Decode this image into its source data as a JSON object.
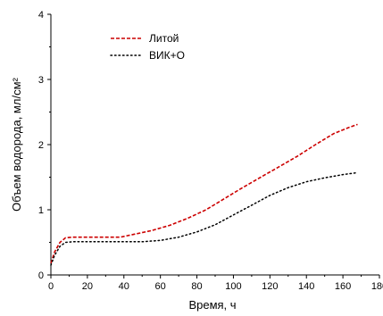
{
  "chart_data": {
    "type": "line",
    "xlabel": "Время, ч",
    "ylabel": "Объем водорода, мл/см²",
    "xlim": [
      0,
      180
    ],
    "ylim": [
      0,
      4
    ],
    "xticks": [
      "0",
      "20",
      "40",
      "60",
      "80",
      "100",
      "120",
      "140",
      "160",
      "180"
    ],
    "yticks": [
      "0",
      "1",
      "2",
      "3",
      "4"
    ],
    "grid": false,
    "legend_position": "top-left",
    "series": [
      {
        "name": "Литой",
        "color": "#cc0000",
        "line_style": "dashed",
        "x": [
          0,
          2,
          5,
          8,
          12,
          20,
          30,
          38,
          45,
          55,
          65,
          75,
          85,
          95,
          105,
          115,
          125,
          135,
          145,
          155,
          163,
          168
        ],
        "y": [
          0.18,
          0.35,
          0.5,
          0.57,
          0.58,
          0.58,
          0.58,
          0.58,
          0.62,
          0.68,
          0.76,
          0.87,
          1.0,
          1.17,
          1.34,
          1.5,
          1.66,
          1.82,
          2.0,
          2.17,
          2.26,
          2.31
        ]
      },
      {
        "name": "ВИК+О",
        "color": "#000000",
        "line_style": "dotted",
        "x": [
          0,
          2,
          5,
          8,
          12,
          20,
          30,
          40,
          50,
          60,
          70,
          80,
          90,
          100,
          110,
          120,
          130,
          140,
          150,
          160,
          168
        ],
        "y": [
          0.15,
          0.3,
          0.44,
          0.5,
          0.51,
          0.51,
          0.51,
          0.51,
          0.51,
          0.53,
          0.58,
          0.66,
          0.77,
          0.92,
          1.07,
          1.22,
          1.34,
          1.43,
          1.49,
          1.54,
          1.57
        ]
      }
    ]
  }
}
